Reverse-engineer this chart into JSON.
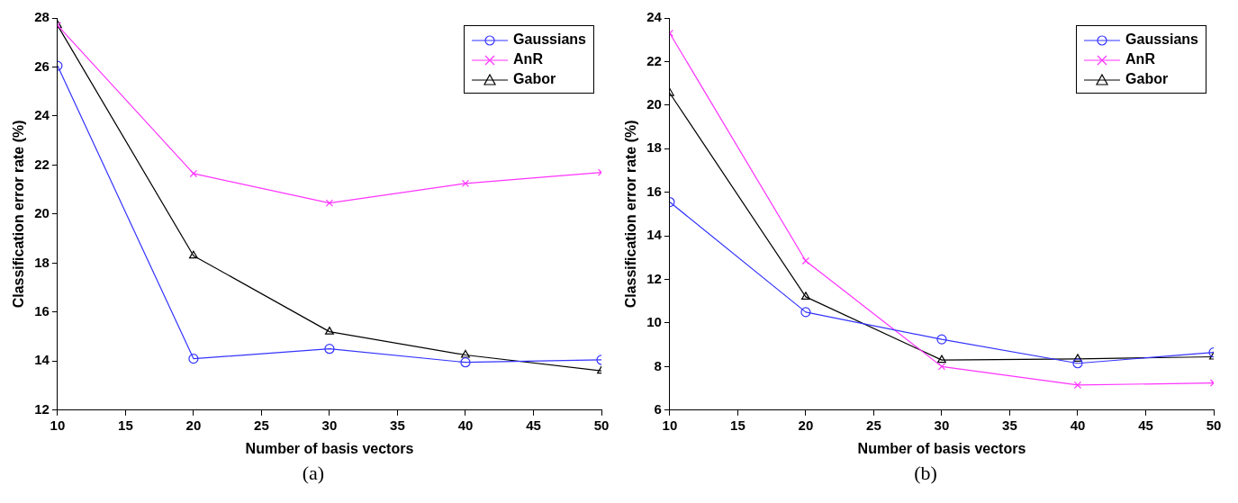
{
  "chart_data": [
    {
      "type": "line",
      "xlabel": "Number of basis vectors",
      "ylabel": "Classification error rate (%)",
      "x": [
        10,
        20,
        30,
        40,
        50
      ],
      "xlim": [
        10,
        50
      ],
      "xticks": [
        10,
        15,
        20,
        25,
        30,
        35,
        40,
        45,
        50
      ],
      "ylim": [
        12,
        28
      ],
      "yticks": [
        12,
        14,
        16,
        18,
        20,
        22,
        24,
        26,
        28
      ],
      "grid": false,
      "legend": "top right",
      "annotations": [
        "(a)"
      ],
      "series": [
        {
          "name": "Gaussians",
          "color": "#3333ff",
          "marker": "circle",
          "values": [
            26.05,
            14.1,
            14.5,
            13.95,
            14.05
          ]
        },
        {
          "name": "AnR",
          "color": "#ff33ff",
          "marker": "cross",
          "values": [
            27.7,
            21.65,
            20.45,
            21.25,
            21.7
          ]
        },
        {
          "name": "Gabor",
          "color": "#000000",
          "marker": "triangle",
          "values": [
            27.7,
            18.3,
            15.2,
            14.25,
            13.6
          ]
        }
      ]
    },
    {
      "type": "line",
      "xlabel": "Number of basis vectors",
      "ylabel": "Classification error rate (%)",
      "x": [
        10,
        20,
        30,
        40,
        50
      ],
      "xlim": [
        10,
        50
      ],
      "xticks": [
        10,
        15,
        20,
        25,
        30,
        35,
        40,
        45,
        50
      ],
      "ylim": [
        6,
        24
      ],
      "yticks": [
        6,
        8,
        10,
        12,
        14,
        16,
        18,
        20,
        22,
        24
      ],
      "grid": false,
      "legend": "top right",
      "annotations": [
        "(b)"
      ],
      "series": [
        {
          "name": "Gaussians",
          "color": "#3333ff",
          "marker": "circle",
          "values": [
            15.55,
            10.5,
            9.25,
            8.15,
            8.65
          ]
        },
        {
          "name": "AnR",
          "color": "#ff33ff",
          "marker": "cross",
          "values": [
            23.3,
            12.85,
            8.0,
            7.15,
            7.25
          ]
        },
        {
          "name": "Gabor",
          "color": "#000000",
          "marker": "triangle",
          "values": [
            20.55,
            11.2,
            8.3,
            8.35,
            8.45
          ]
        }
      ]
    }
  ]
}
